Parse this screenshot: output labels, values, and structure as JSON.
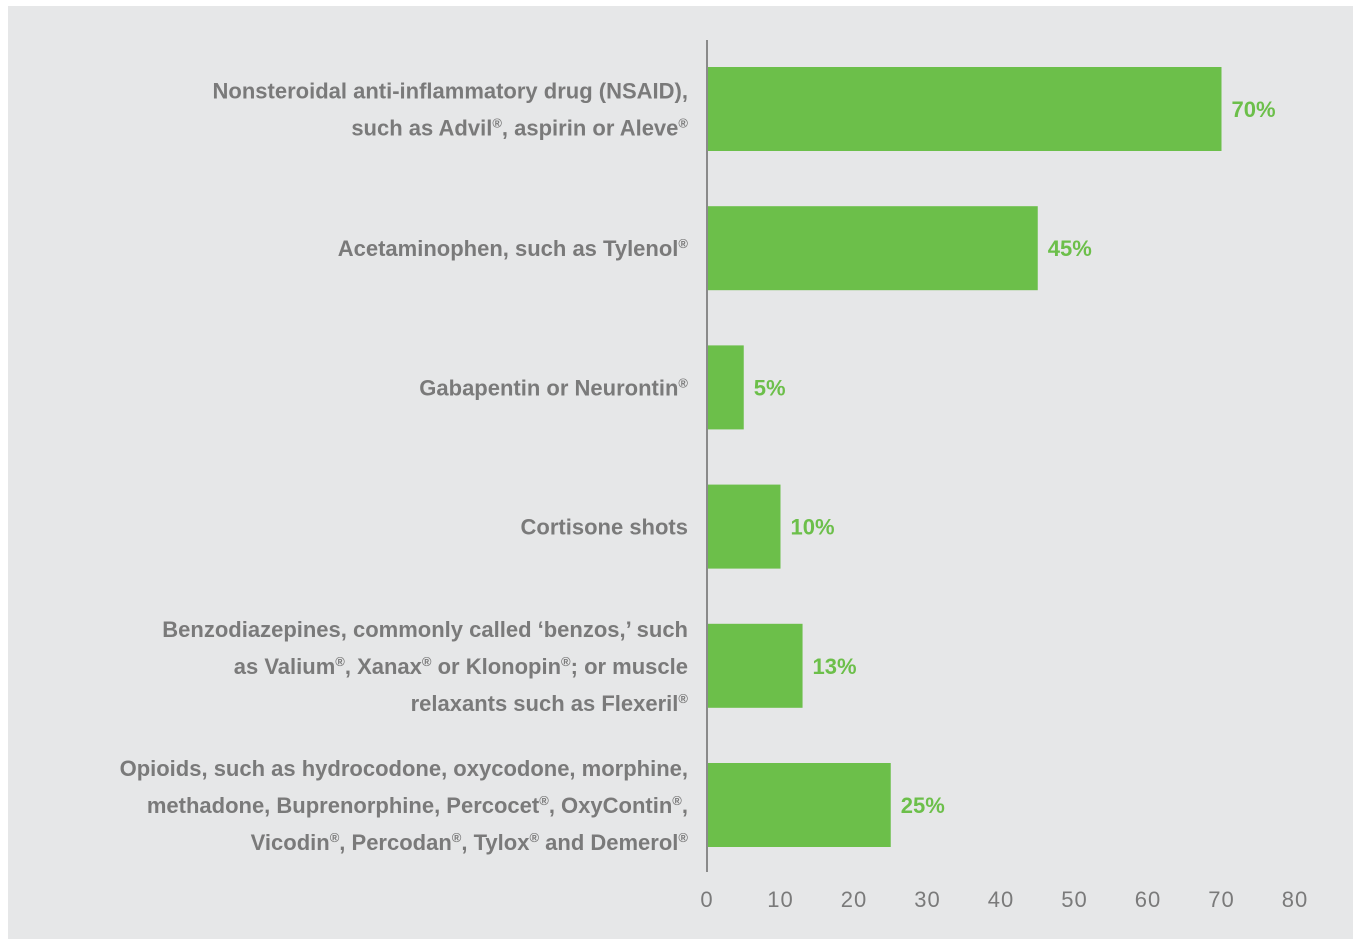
{
  "colors": {
    "background": "#e6e7e8",
    "bar": "#6cbf4a",
    "value_label": "#6cbf4a",
    "text": "#7a7a7a",
    "axis": "#8a8a8a"
  },
  "chart_data": {
    "type": "bar",
    "orientation": "horizontal",
    "title": "",
    "xlabel": "",
    "ylabel": "",
    "xlim": [
      0,
      80
    ],
    "xticks": [
      0,
      10,
      20,
      30,
      40,
      50,
      60,
      70,
      80
    ],
    "grid": false,
    "categories": [
      [
        "Nonsteroidal anti-inflammatory drug (NSAID),",
        "such as Advil®, aspirin or Aleve®"
      ],
      [
        "Acetaminophen, such as Tylenol®"
      ],
      [
        "Gabapentin or Neurontin®"
      ],
      [
        "Cortisone shots"
      ],
      [
        "Benzodiazepines, commonly called ‘benzos,’ such",
        "as Valium®, Xanax® or Klonopin®; or muscle",
        "relaxants such as Flexeril®"
      ],
      [
        "Opioids, such as hydrocodone, oxycodone, morphine,",
        "methadone, Buprenorphine, Percocet®, OxyContin®,",
        "Vicodin®, Percodan®, Tylox® and Demerol®"
      ]
    ],
    "values": [
      70,
      45,
      5,
      10,
      13,
      25
    ],
    "value_labels": [
      "70%",
      "45%",
      "5%",
      "10%",
      "13%",
      "25%"
    ]
  }
}
